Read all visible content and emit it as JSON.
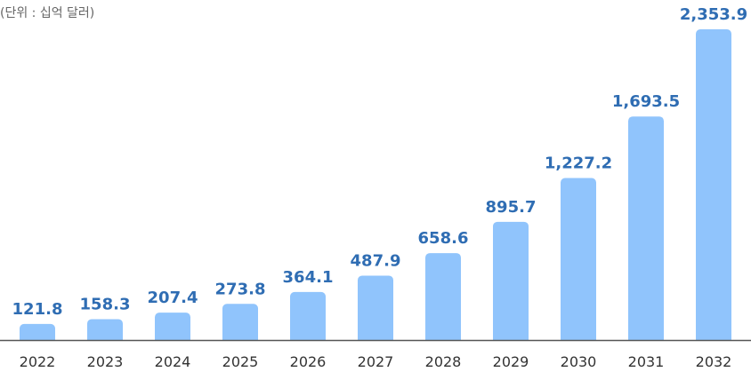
{
  "unit_text": "(단위 : 십억 달러)",
  "colors": {
    "bar": "#90c4fc",
    "value_label": "#2f6db3",
    "tick_label": "#333333",
    "axis": "#555555",
    "unit_label": "#666666"
  },
  "chart_data": {
    "type": "bar",
    "title": "",
    "xlabel": "",
    "ylabel": "",
    "unit": "(단위 : 십억 달러)",
    "categories": [
      "2022",
      "2023",
      "2024",
      "2025",
      "2026",
      "2027",
      "2028",
      "2029",
      "2030",
      "2031",
      "2032"
    ],
    "values": [
      121.8,
      158.3,
      207.4,
      273.8,
      364.1,
      487.9,
      658.6,
      895.7,
      1227.2,
      1693.5,
      2353.9
    ],
    "value_labels": [
      "121.8",
      "158.3",
      "207.4",
      "273.8",
      "364.1",
      "487.9",
      "658.6",
      "895.7",
      "1,227.2",
      "1,693.5",
      "2,353.9"
    ],
    "ylim": [
      0,
      2353.9
    ],
    "grid": false,
    "legend": "none"
  }
}
